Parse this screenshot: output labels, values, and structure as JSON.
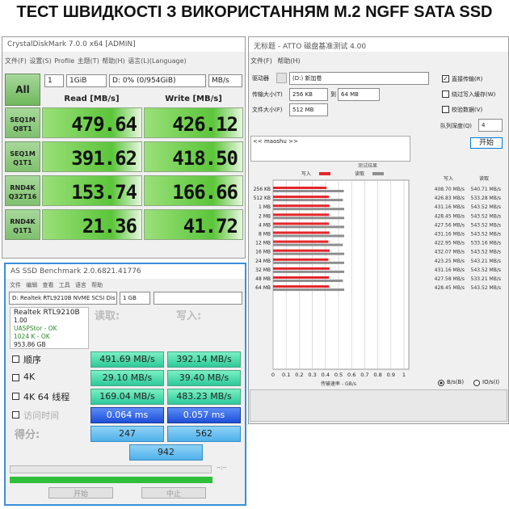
{
  "title": "ТЕСТ ШВИДКОСТІ З ВИКОРИСТАННЯМ M.2 NGFF SATA SSD",
  "crystaldiskmark": {
    "window_title": "CrystalDiskMark 7.0.0 x64 [ADMIN]",
    "menu": [
      "文件(F)",
      "设置(S)",
      "Profile",
      "主题(T)",
      "帮助(H)",
      "语言(L)(Language)"
    ],
    "all_button": "All",
    "count": "1",
    "size": "1GiB",
    "drive": "D: 0% (0/954GiB)",
    "unit": "MB/s",
    "read_header": "Read [MB/s]",
    "write_header": "Write [MB/s]",
    "rows": [
      {
        "test": "SEQ1M",
        "params": "Q8T1",
        "read": "479.64",
        "write": "426.12"
      },
      {
        "test": "SEQ1M",
        "params": "Q1T1",
        "read": "391.62",
        "write": "418.50"
      },
      {
        "test": "RND4K",
        "params": "Q32T16",
        "read": "153.74",
        "write": "166.66"
      },
      {
        "test": "RND4K",
        "params": "Q1T1",
        "read": "21.36",
        "write": "41.72"
      }
    ]
  },
  "as_ssd": {
    "window_title": "AS SSD Benchmark 2.0.6821.41776",
    "menu": [
      "文件",
      "编辑",
      "查看",
      "工具",
      "语言",
      "帮助"
    ],
    "drive": "D: Realtek RTL9210B NVME SCSI Dis",
    "size": "1 GB",
    "info": [
      "Realtek RTL9210B",
      "1.00",
      "UASPStor - OK",
      "1024 K - OK",
      "953.86 GB"
    ],
    "read_header": "读取:",
    "write_header": "写入:",
    "rows": [
      {
        "label": "顺序",
        "read": "491.69 MB/s",
        "write": "392.14 MB/s"
      },
      {
        "label": "4K",
        "read": "29.10 MB/s",
        "write": "39.40 MB/s"
      },
      {
        "label": "4K 64 线程",
        "read": "169.04 MB/s",
        "write": "483.23 MB/s"
      },
      {
        "label": "访问时间",
        "read": "0.064 ms",
        "write": "0.057 ms"
      }
    ],
    "score_label": "得分:",
    "score_read": "247",
    "score_write": "562",
    "score_total": "942",
    "time": "--:--",
    "start_button": "开始",
    "abort_button": "中止"
  },
  "atto": {
    "window_title": "无标题 - ATTO 磁盘基准测试 4.00",
    "menu": [
      "文件(F)",
      "帮助(H)"
    ],
    "drive_label": "驱动器",
    "drive": "(D:) 新加卷",
    "transfer_label": "传输大小(T)",
    "transfer_from": "256 KB",
    "to": "到",
    "transfer_to": "64 MB",
    "file_label": "文件大小(F)",
    "file_size": "512 MB",
    "options": [
      "直接传输(R)",
      "绕过写入缓存(W)",
      "校验数据(V)"
    ],
    "queue_label": "队列深度(Q)",
    "queue": "4",
    "start_button": "开始",
    "notes": "<< maoshu >>",
    "units": [
      "B/s(B)",
      "IO/s(I)"
    ]
  },
  "chart_data": {
    "type": "bar",
    "horizontal": true,
    "title": "测试结果",
    "categories": [
      "256 KB",
      "512 KB",
      "1 MB",
      "2 MB",
      "4 MB",
      "8 MB",
      "12 MB",
      "16 MB",
      "24 MB",
      "32 MB",
      "48 MB",
      "64 MB"
    ],
    "series": [
      {
        "name": "写入",
        "color": "#e3262b",
        "values": [
          0.4087,
          0.42683,
          0.43116,
          0.42845,
          0.42756,
          0.43116,
          0.42295,
          0.43207,
          0.42325,
          0.43116,
          0.42758,
          0.42845
        ],
        "value_labels": [
          "408.70 MB/s",
          "426.83 MB/s",
          "431.16 MB/s",
          "428.45 MB/s",
          "427.56 MB/s",
          "431.16 MB/s",
          "422.95 MB/s",
          "432.07 MB/s",
          "423.25 MB/s",
          "431.16 MB/s",
          "427.58 MB/s",
          "428.45 MB/s"
        ]
      },
      {
        "name": "读取",
        "color": "#8e8e8e",
        "values": [
          0.54071,
          0.53328,
          0.54352,
          0.54352,
          0.54352,
          0.54352,
          0.53316,
          0.54352,
          0.54321,
          0.54352,
          0.53321,
          0.54352
        ],
        "value_labels": [
          "540.71 MB/s",
          "533.28 MB/s",
          "543.52 MB/s",
          "543.52 MB/s",
          "543.52 MB/s",
          "543.52 MB/s",
          "533.16 MB/s",
          "543.52 MB/s",
          "543.21 MB/s",
          "543.52 MB/s",
          "533.21 MB/s",
          "543.52 MB/s"
        ]
      }
    ],
    "xlim": [
      0,
      1
    ],
    "xticks": [
      0,
      0.1,
      0.2,
      0.3,
      0.4,
      0.5,
      0.6,
      0.7,
      0.8,
      0.9,
      1
    ],
    "xlabel": "传输速率 - GB/s",
    "grid": true
  }
}
